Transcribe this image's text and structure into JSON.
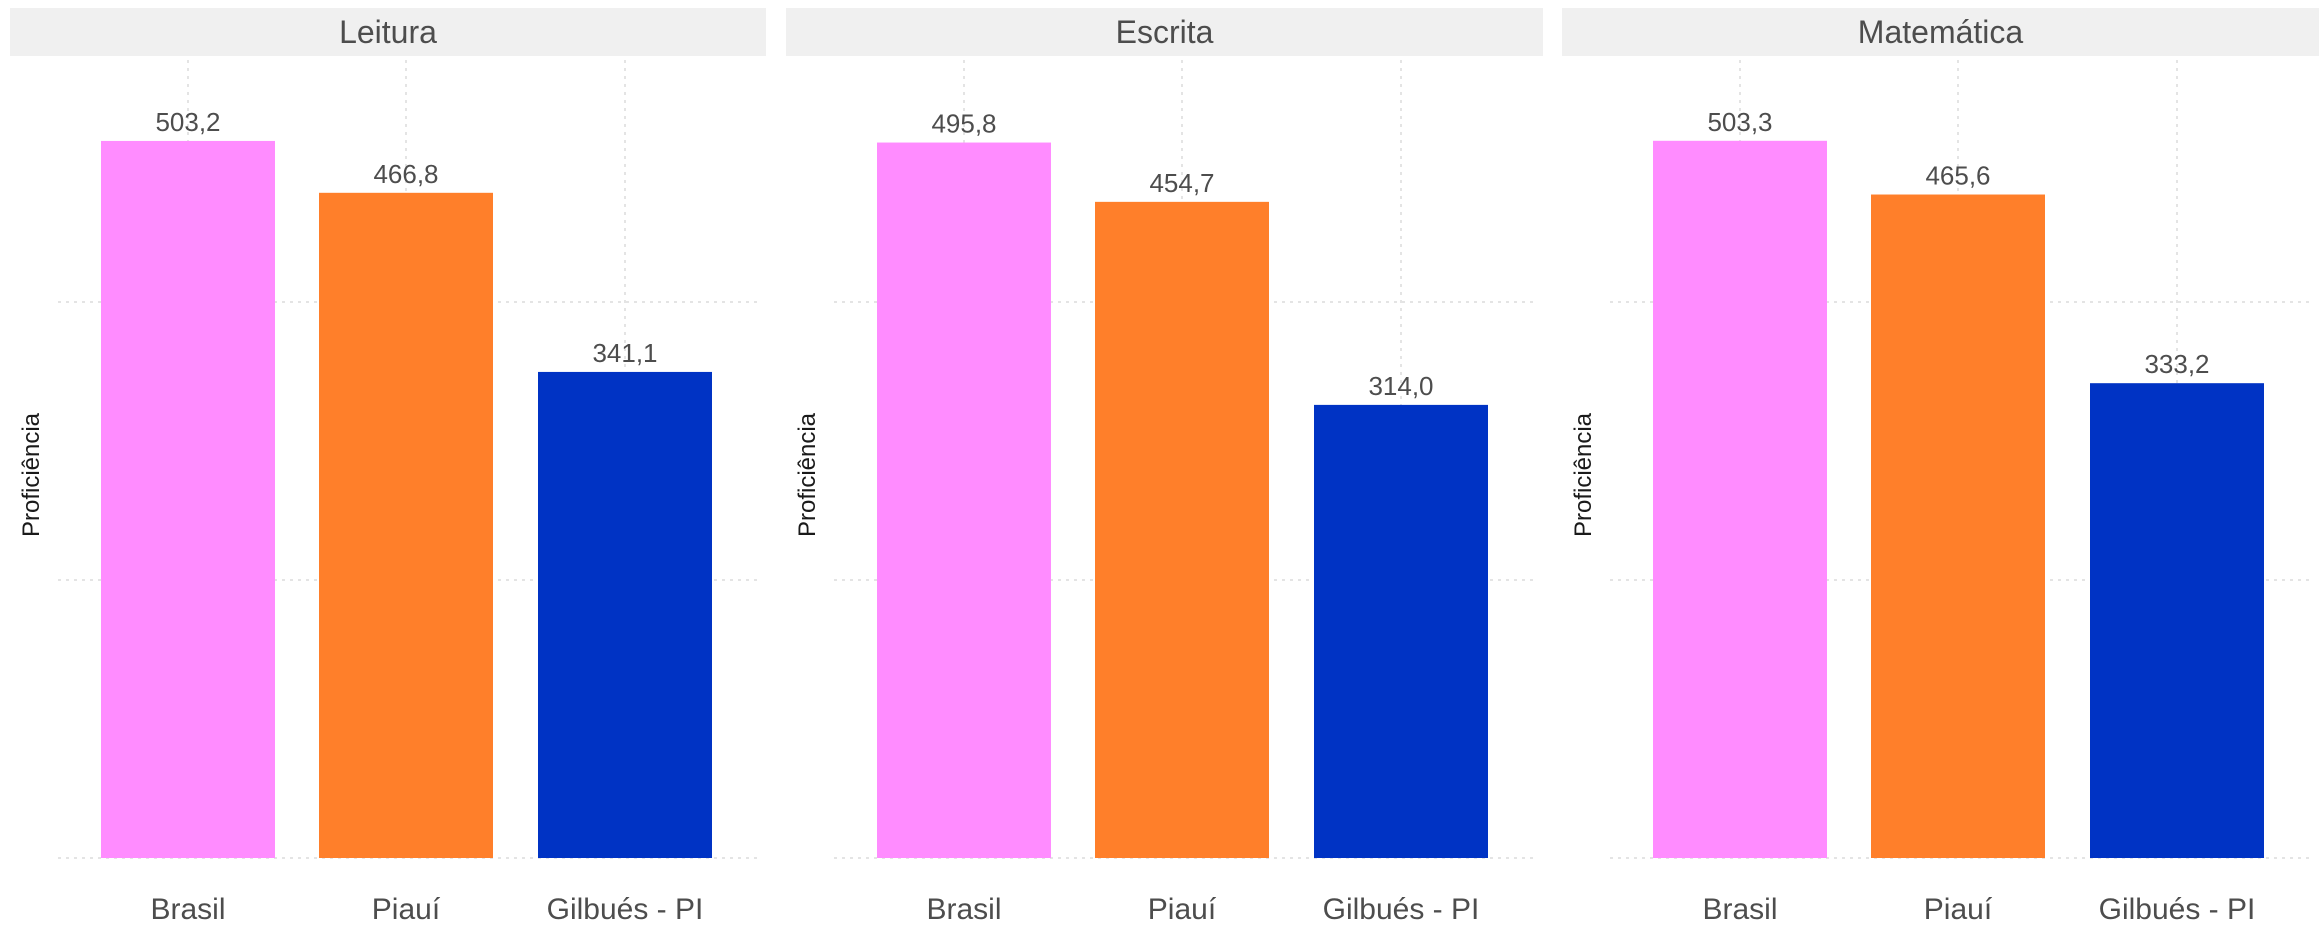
{
  "chart_data": [
    {
      "type": "bar",
      "title": "Leitura",
      "ylabel": "Proficiência",
      "categories": [
        "Brasil",
        "Piauí",
        "Gilbués - PI"
      ],
      "values": [
        503.2,
        466.8,
        341.1
      ],
      "value_labels": [
        "503,2",
        "466,8",
        "341,1"
      ],
      "colors": [
        "#ff8cff",
        "#ff7f2a",
        "#0033c4"
      ],
      "ylim": [
        0,
        560
      ],
      "grid": true
    },
    {
      "type": "bar",
      "title": "Escrita",
      "ylabel": "Proficiência",
      "categories": [
        "Brasil",
        "Piauí",
        "Gilbués - PI"
      ],
      "values": [
        495.8,
        454.7,
        314.0
      ],
      "value_labels": [
        "495,8",
        "454,7",
        "314,0"
      ],
      "colors": [
        "#ff8cff",
        "#ff7f2a",
        "#0033c4"
      ],
      "ylim": [
        0,
        553
      ],
      "grid": true
    },
    {
      "type": "bar",
      "title": "Matemática",
      "ylabel": "Proficiência",
      "categories": [
        "Brasil",
        "Piauí",
        "Gilbués - PI"
      ],
      "values": [
        503.3,
        465.6,
        333.2
      ],
      "value_labels": [
        "503,3",
        "465,6",
        "333,2"
      ],
      "colors": [
        "#ff8cff",
        "#ff7f2a",
        "#0033c4"
      ],
      "ylim": [
        0,
        560
      ],
      "grid": true
    }
  ]
}
